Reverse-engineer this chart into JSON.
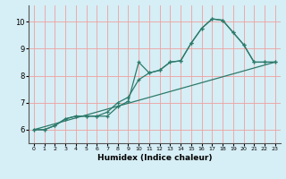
{
  "xlabel": "Humidex (Indice chaleur)",
  "xlim": [
    -0.5,
    23.5
  ],
  "ylim": [
    5.5,
    10.6
  ],
  "xticks": [
    0,
    1,
    2,
    3,
    4,
    5,
    6,
    7,
    8,
    9,
    10,
    11,
    12,
    13,
    14,
    15,
    16,
    17,
    18,
    19,
    20,
    21,
    22,
    23
  ],
  "yticks": [
    6,
    7,
    8,
    9,
    10
  ],
  "background_color": "#d6eef5",
  "grid_color": "#f0a0a0",
  "line_color": "#2d7a6a",
  "line1_x": [
    0,
    1,
    2,
    3,
    4,
    5,
    6,
    7,
    8,
    9,
    10,
    11,
    12,
    13,
    14,
    15,
    16,
    17,
    18,
    19,
    20,
    21,
    22,
    23
  ],
  "line1_y": [
    6.0,
    6.0,
    6.15,
    6.4,
    6.5,
    6.5,
    6.5,
    6.5,
    6.85,
    7.05,
    8.5,
    8.1,
    8.2,
    8.5,
    8.55,
    9.2,
    9.75,
    10.1,
    10.05,
    9.6,
    9.15,
    8.5,
    8.5,
    8.5
  ],
  "line2_x": [
    0,
    1,
    2,
    3,
    4,
    5,
    6,
    7,
    8,
    9,
    10,
    11,
    12,
    13,
    14,
    15,
    16,
    17,
    18,
    19,
    20,
    21,
    22,
    23
  ],
  "line2_y": [
    6.0,
    6.0,
    6.15,
    6.4,
    6.5,
    6.5,
    6.5,
    6.65,
    7.0,
    7.2,
    7.85,
    8.1,
    8.2,
    8.5,
    8.55,
    9.2,
    9.75,
    10.1,
    10.05,
    9.6,
    9.15,
    8.5,
    8.5,
    8.5
  ],
  "line3_x": [
    0,
    23
  ],
  "line3_y": [
    6.0,
    8.5
  ],
  "figsize": [
    3.2,
    2.0
  ],
  "dpi": 100
}
